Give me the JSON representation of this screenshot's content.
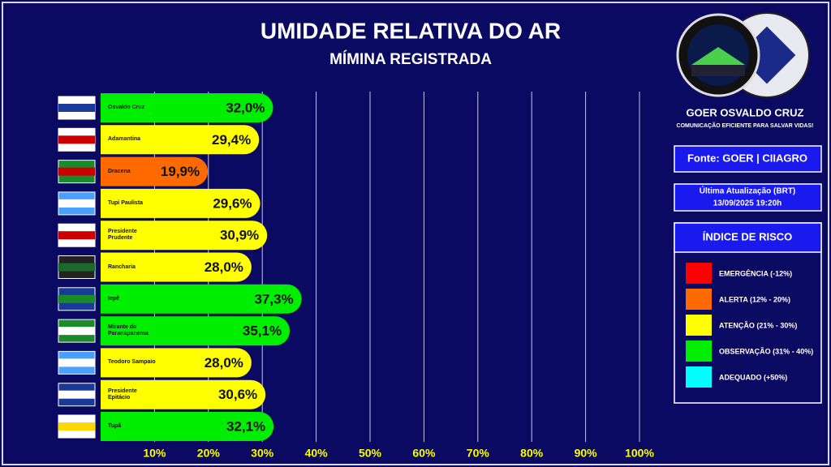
{
  "chart_data": {
    "type": "bar",
    "orientation": "horizontal",
    "title": "UMIDADE RELATIVA DO AR",
    "subtitle": "MÍMINA REGISTRADA",
    "categories": [
      "Osvaldo Cruz",
      "Adamantina",
      "Dracena",
      "Tupi Paulista",
      "Presidente Prudente",
      "Rancharia",
      "Iepê",
      "Mirante do Paranapanema",
      "Teodoro Sampaio",
      "Presidente Epitácio",
      "Tupã"
    ],
    "values": [
      32.0,
      29.4,
      19.9,
      29.6,
      30.9,
      28.0,
      37.3,
      35.1,
      28.0,
      30.6,
      32.1
    ],
    "value_labels": [
      "32,0%",
      "29,4%",
      "19,9%",
      "29,6%",
      "30,9%",
      "28,0%",
      "37,3%",
      "35,1%",
      "28,0%",
      "30,6%",
      "32,1%"
    ],
    "colors": [
      "#00ee00",
      "#ffff00",
      "#ff6a00",
      "#ffff00",
      "#ffff00",
      "#ffff00",
      "#00ee00",
      "#00ee00",
      "#ffff00",
      "#ffff00",
      "#00ee00"
    ],
    "xlim": [
      0,
      100
    ],
    "xticks": [
      {
        "value": 10,
        "label": "10%"
      },
      {
        "value": 20,
        "label": "20%"
      },
      {
        "value": 30,
        "label": "30%"
      },
      {
        "value": 40,
        "label": "40%"
      },
      {
        "value": 50,
        "label": "50%"
      },
      {
        "value": 60,
        "label": "60%"
      },
      {
        "value": 70,
        "label": "70%"
      },
      {
        "value": 80,
        "label": "80%"
      },
      {
        "value": 90,
        "label": "90%"
      },
      {
        "value": 100,
        "label": "100%"
      }
    ],
    "grid": true
  },
  "panel": {
    "brand": "GOER OSVALDO CRUZ",
    "slogan": "COMUNICAÇÃO EFICIENTE PARA SALVAR VIDAS!",
    "source": "Fonte: GOER | CIIAGRO",
    "update_label": "Última Atualização (BRT)",
    "update_time": "13/09/2025 19:20h",
    "risk_title": "ÍNDICE DE RISCO",
    "risk_items": [
      {
        "label": "EMERGÊNCIA (-12%)",
        "color": "#ff0000"
      },
      {
        "label": "ALERTA (12% - 20%)",
        "color": "#ff6a00"
      },
      {
        "label": "ATENÇÃO (21% - 30%)",
        "color": "#ffff00"
      },
      {
        "label": "OBSERVAÇÃO (31% - 40%)",
        "color": "#00ee00"
      },
      {
        "label": "ADEQUADO (+50%)",
        "color": "#00ffff"
      }
    ]
  }
}
